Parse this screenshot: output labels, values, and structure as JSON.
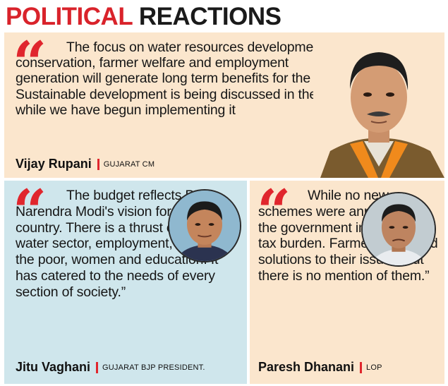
{
  "header": {
    "title_part1": "POLITICAL",
    "title_part2": "REACTIONS"
  },
  "quotes": [
    {
      "text": "The focus on water resources development and conservation, farmer welfare and employment generation will generate long term benefits for the state. Sustainable development is being discussed in the world while we have begun implementing it",
      "name": "Vijay Rupani",
      "role": "GUJARAT CM",
      "photo": "portrait-vijay-rupani"
    },
    {
      "text": "The budget reflects PM Narendra Modi's vision for the country. There is a thrust on the water sector, employment, welfare of the poor, women and education. It has catered to the needs of every section of society.”",
      "name": "Jitu Vaghani",
      "role": "GUJARAT BJP PRESIDENT.",
      "photo": "portrait-jitu-vaghani"
    },
    {
      "text": "While no new schemes were announced, the government increased the tax burden. Farmers expected solutions to their issues, but there is no mention of them.”",
      "name": "Paresh Dhanani",
      "role": "LOP",
      "photo": "portrait-paresh-dhanani"
    }
  ],
  "colors": {
    "accent_red": "#e0262d",
    "panel_peach": "#fbe6cd",
    "panel_blue": "#cfe6ec"
  },
  "icons": {
    "quote": "opening-quote-icon"
  }
}
